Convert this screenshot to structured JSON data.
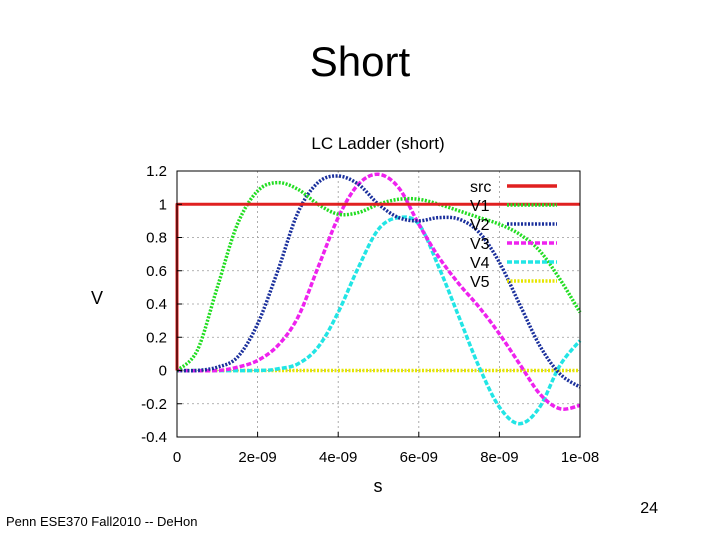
{
  "slide": {
    "title": "Short",
    "footer": "Penn ESE370 Fall2010 -- DeHon",
    "page_number": "24"
  },
  "chart_data": {
    "type": "line",
    "title": "LC Ladder (short)",
    "xlabel": "s",
    "ylabel": "V",
    "xlim": [
      0,
      1e-08
    ],
    "ylim": [
      -0.4,
      1.2
    ],
    "x_ticks": [
      {
        "v": 0,
        "label": "0"
      },
      {
        "v": 2e-09,
        "label": "2e-09"
      },
      {
        "v": 4e-09,
        "label": "4e-09"
      },
      {
        "v": 6e-09,
        "label": "6e-09"
      },
      {
        "v": 8e-09,
        "label": "8e-09"
      },
      {
        "v": 1e-08,
        "label": "1e-08"
      }
    ],
    "y_ticks": [
      {
        "v": -0.4,
        "label": "-0.4"
      },
      {
        "v": -0.2,
        "label": "-0.2"
      },
      {
        "v": 0,
        "label": "0"
      },
      {
        "v": 0.2,
        "label": "0.2"
      },
      {
        "v": 0.4,
        "label": "0.4"
      },
      {
        "v": 0.6,
        "label": "0.6"
      },
      {
        "v": 0.8,
        "label": "0.8"
      },
      {
        "v": 1,
        "label": "1"
      },
      {
        "v": 1.2,
        "label": "1.2"
      }
    ],
    "grid": true,
    "legend_position": "top-right",
    "series": [
      {
        "name": "src",
        "color": "#e02020",
        "dash": "solid",
        "x": [
          0,
          0,
          1e-08
        ],
        "y": [
          0,
          1,
          1
        ]
      },
      {
        "name": "V1",
        "color": "#22dd22",
        "dash": "dotted",
        "x": [
          0,
          5e-10,
          1e-09,
          1.5e-09,
          2e-09,
          2.5e-09,
          3e-09,
          3.5e-09,
          4e-09,
          4.5e-09,
          5e-09,
          5.5e-09,
          6e-09,
          6.5e-09,
          7e-09,
          7.5e-09,
          8e-09,
          8.5e-09,
          9e-09,
          9.5e-09,
          1e-08
        ],
        "y": [
          0,
          0.12,
          0.5,
          0.88,
          1.08,
          1.13,
          1.09,
          1.0,
          0.94,
          0.95,
          1.0,
          1.03,
          1.03,
          1.0,
          0.96,
          0.92,
          0.88,
          0.82,
          0.72,
          0.55,
          0.35
        ]
      },
      {
        "name": "V2",
        "color": "#1a2f9c",
        "dash": "dotted",
        "x": [
          0,
          5e-10,
          1e-09,
          1.5e-09,
          2e-09,
          2.5e-09,
          3e-09,
          3.5e-09,
          4e-09,
          4.5e-09,
          5e-09,
          5.5e-09,
          6e-09,
          6.5e-09,
          7e-09,
          7.5e-09,
          8e-09,
          8.5e-09,
          9e-09,
          9.5e-09,
          1e-08
        ],
        "y": [
          0,
          0.0,
          0.02,
          0.08,
          0.28,
          0.6,
          0.95,
          1.13,
          1.17,
          1.12,
          1.0,
          0.92,
          0.9,
          0.92,
          0.91,
          0.83,
          0.65,
          0.4,
          0.15,
          -0.02,
          -0.1
        ]
      },
      {
        "name": "V3",
        "color": "#ee22ee",
        "dash": "dashed",
        "x": [
          0,
          1e-09,
          1.5e-09,
          2e-09,
          2.5e-09,
          3e-09,
          3.5e-09,
          4e-09,
          4.5e-09,
          5e-09,
          5.5e-09,
          6e-09,
          6.5e-09,
          7e-09,
          7.5e-09,
          8e-09,
          8.5e-09,
          9e-09,
          9.5e-09,
          1e-08
        ],
        "y": [
          0,
          0.0,
          0.02,
          0.06,
          0.15,
          0.32,
          0.62,
          0.92,
          1.12,
          1.18,
          1.1,
          0.88,
          0.68,
          0.52,
          0.38,
          0.22,
          0.04,
          -0.14,
          -0.23,
          -0.21
        ]
      },
      {
        "name": "V4",
        "color": "#22e5e5",
        "dash": "dashed",
        "x": [
          0,
          2e-09,
          2.5e-09,
          3e-09,
          3.5e-09,
          4e-09,
          4.5e-09,
          5e-09,
          5.5e-09,
          6e-09,
          6.5e-09,
          7e-09,
          7.5e-09,
          8e-09,
          8.5e-09,
          9e-09,
          9.5e-09,
          1e-08
        ],
        "y": [
          0,
          0.0,
          0.01,
          0.04,
          0.14,
          0.35,
          0.62,
          0.85,
          0.92,
          0.88,
          0.62,
          0.32,
          0.02,
          -0.22,
          -0.32,
          -0.22,
          0.03,
          0.18
        ]
      },
      {
        "name": "V5",
        "color": "#e6e600",
        "dash": "dotted",
        "x": [
          0,
          1e-08
        ],
        "y": [
          0,
          0
        ]
      }
    ]
  }
}
